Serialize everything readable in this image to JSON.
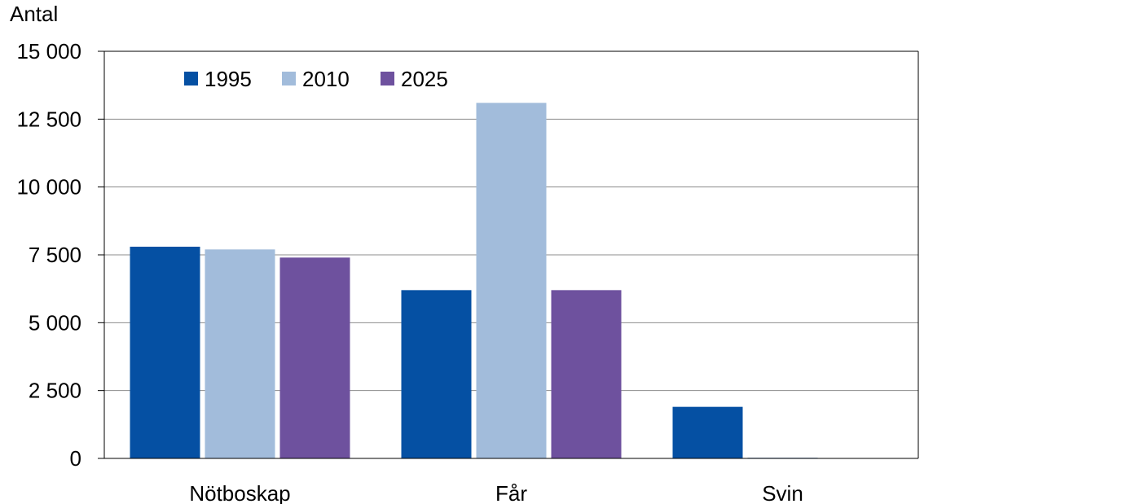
{
  "chart_data": {
    "type": "bar",
    "ylabel": "Antal",
    "xlabel": "",
    "ylim": [
      0,
      15000
    ],
    "yticks": [
      0,
      2500,
      5000,
      7500,
      10000,
      12500,
      15000
    ],
    "ytick_labels": [
      "0",
      "2 500",
      "5 000",
      "7 500",
      "10 000",
      "12 500",
      "15 000"
    ],
    "categories": [
      "Nötboskap",
      "Får",
      "Svin"
    ],
    "series": [
      {
        "name": "1995",
        "color": "#0550a3",
        "values": [
          7800,
          6200,
          1900
        ]
      },
      {
        "name": "2010",
        "color": "#a2bcdb",
        "values": [
          7700,
          13100,
          30
        ]
      },
      {
        "name": "2025",
        "color": "#6e519e",
        "values": [
          7400,
          6200,
          0
        ]
      }
    ],
    "grid": true,
    "legend_position": "top-left inside"
  }
}
